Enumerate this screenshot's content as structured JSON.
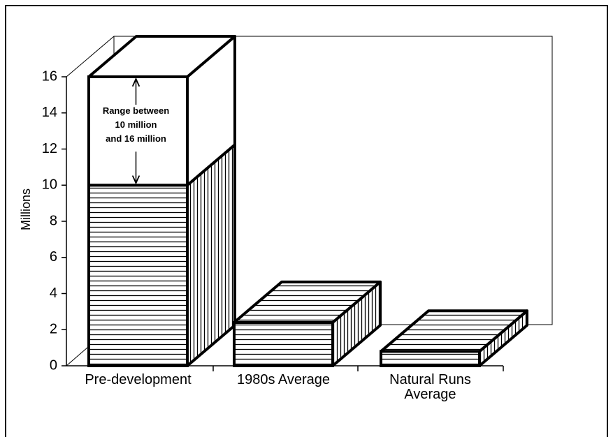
{
  "chart_data": {
    "type": "bar3d",
    "y_label": "Millions",
    "categories": [
      "Pre-development",
      "1980s  Average",
      "Natural  Runs\nAverage"
    ],
    "series": [
      {
        "values": [
          10,
          2.4,
          0.8
        ]
      },
      {
        "values": [
          6,
          null,
          null
        ]
      }
    ],
    "annotation": "Range between\n10 million\nand 16 million",
    "ylim": [
      0,
      16
    ],
    "yticks": [
      0,
      2,
      4,
      6,
      8,
      10,
      12,
      14,
      16
    ]
  }
}
